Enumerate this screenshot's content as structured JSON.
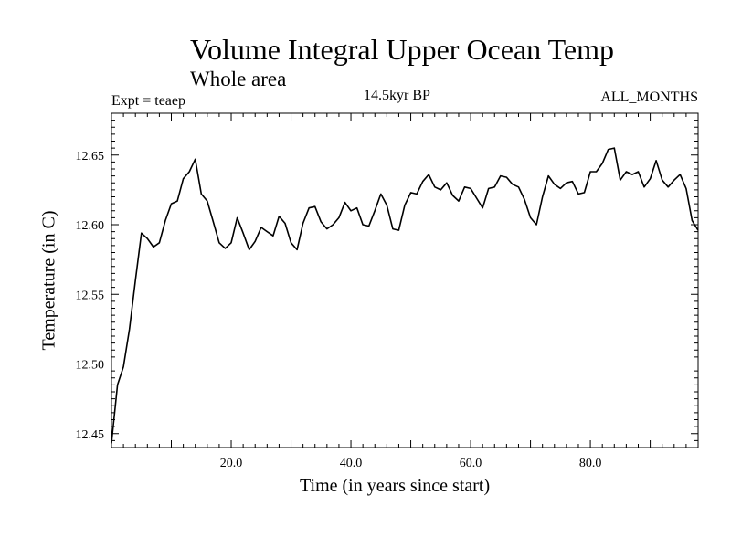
{
  "chart_data": {
    "type": "line",
    "title": "Volume Integral Upper Ocean Temp",
    "subtitle": "Whole area",
    "annotations": {
      "experiment": "Expt = teaep",
      "period": "14.5kyr BP",
      "months": "ALL_MONTHS"
    },
    "xlabel": "Time (in years since start)",
    "ylabel": "Temperature (in C)",
    "xlim": [
      0,
      98
    ],
    "ylim": [
      12.44,
      12.68
    ],
    "xticks": [
      20,
      40,
      60,
      80
    ],
    "xtick_labels": [
      "20.0",
      "40.0",
      "60.0",
      "80.0"
    ],
    "yticks": [
      12.45,
      12.5,
      12.55,
      12.6,
      12.65
    ],
    "ytick_labels": [
      "12.45",
      "12.50",
      "12.55",
      "12.60",
      "12.65"
    ],
    "grid": false,
    "series": [
      {
        "name": "Temperature",
        "color": "#000000",
        "x": [
          0,
          1,
          2,
          3,
          4,
          5,
          6,
          7,
          8,
          9,
          10,
          11,
          12,
          13,
          14,
          15,
          16,
          17,
          18,
          19,
          20,
          21,
          22,
          23,
          24,
          25,
          26,
          27,
          28,
          29,
          30,
          31,
          32,
          33,
          34,
          35,
          36,
          37,
          38,
          39,
          40,
          41,
          42,
          43,
          44,
          45,
          46,
          47,
          48,
          49,
          50,
          51,
          52,
          53,
          54,
          55,
          56,
          57,
          58,
          59,
          60,
          61,
          62,
          63,
          64,
          65,
          66,
          67,
          68,
          69,
          70,
          71,
          72,
          73,
          74,
          75,
          76,
          77,
          78,
          79,
          80,
          81,
          82,
          83,
          84,
          85,
          86,
          87,
          88,
          89,
          90,
          91,
          92,
          93,
          94,
          95,
          96,
          97,
          98
        ],
        "values": [
          12.443,
          12.485,
          12.498,
          12.525,
          12.56,
          12.594,
          12.59,
          12.584,
          12.587,
          12.603,
          12.615,
          12.617,
          12.633,
          12.638,
          12.647,
          12.622,
          12.617,
          12.602,
          12.587,
          12.583,
          12.587,
          12.605,
          12.594,
          12.582,
          12.588,
          12.598,
          12.595,
          12.592,
          12.606,
          12.601,
          12.587,
          12.582,
          12.601,
          12.612,
          12.613,
          12.602,
          12.597,
          12.6,
          12.605,
          12.616,
          12.61,
          12.612,
          12.6,
          12.599,
          12.61,
          12.622,
          12.614,
          12.597,
          12.596,
          12.614,
          12.623,
          12.622,
          12.631,
          12.636,
          12.627,
          12.625,
          12.63,
          12.621,
          12.617,
          12.627,
          12.626,
          12.619,
          12.612,
          12.626,
          12.627,
          12.635,
          12.634,
          12.629,
          12.627,
          12.618,
          12.605,
          12.6,
          12.62,
          12.635,
          12.629,
          12.626,
          12.63,
          12.631,
          12.622,
          12.623,
          12.638,
          12.638,
          12.644,
          12.654,
          12.655,
          12.632,
          12.638,
          12.636,
          12.638,
          12.627,
          12.633,
          12.646,
          12.632,
          12.627,
          12.632,
          12.636,
          12.626,
          12.603,
          12.596
        ]
      }
    ]
  }
}
